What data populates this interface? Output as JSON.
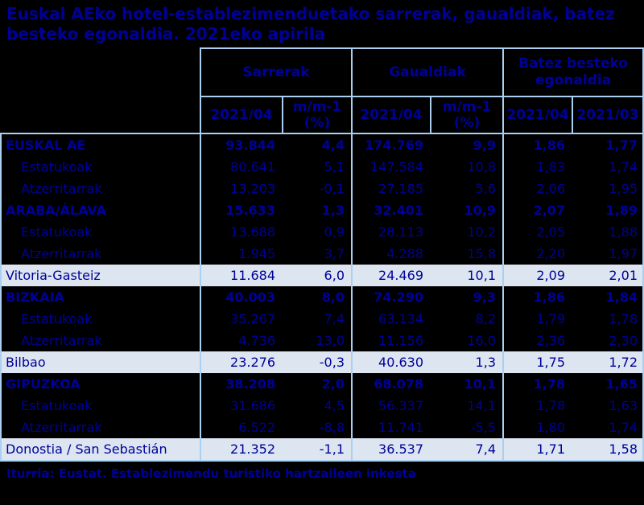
{
  "colors": {
    "background": "#000000",
    "text_navy": "#000099",
    "grid_border_blue": "#ABCFF0",
    "city_row_background": "#DCE5F0"
  },
  "chart_data": {
    "type": "table",
    "title": "Euskal AEko hotel-establezimenduetako sarrerak, gaualdiak, batez besteko egonaldia. 2021eko apirila",
    "title_lines": [
      "Euskal AEko hotel-establezimenduetako sarrerak, gaualdiak, batez",
      "besteko egonaldia. 2021eko apirila"
    ],
    "source": "Iturria: Eustat. Establezimendu turistiko hartzaileen inkesta",
    "column_groups": [
      {
        "label": "Sarrerak",
        "subcolumns": [
          "2021/04",
          "m/m-1 (%)"
        ]
      },
      {
        "label": "Gaualdiak",
        "subcolumns": [
          "2021/04",
          "m/m-1 (%)"
        ]
      },
      {
        "label": "Batez besteko egonaldia",
        "subcolumns": [
          "2021/04",
          "2021/03"
        ]
      }
    ],
    "rows": [
      {
        "label": "EUSKAL AE",
        "style": "bold",
        "values": [
          "93.844",
          "4,4",
          "174.769",
          "9,9",
          "1,86",
          "1,77"
        ]
      },
      {
        "label": "Estatukoak",
        "style": "indent",
        "values": [
          "80.641",
          "5,1",
          "147.584",
          "10,8",
          "1,83",
          "1,74"
        ]
      },
      {
        "label": "Atzerritarrak",
        "style": "indent",
        "values": [
          "13.203",
          "-0,1",
          "27.185",
          "5,6",
          "2,06",
          "1,95"
        ]
      },
      {
        "label": "ARABA/ÁLAVA",
        "style": "bold",
        "values": [
          "15.633",
          "1,3",
          "32.401",
          "10,9",
          "2,07",
          "1,89"
        ]
      },
      {
        "label": "Estatukoak",
        "style": "indent",
        "values": [
          "13.688",
          "0,9",
          "28.113",
          "10,2",
          "2,05",
          "1,88"
        ]
      },
      {
        "label": "Atzerritarrak",
        "style": "indent",
        "values": [
          "1.945",
          "3,7",
          "4.288",
          "15,8",
          "2,20",
          "1,97"
        ]
      },
      {
        "label": "Vitoria-Gasteiz",
        "style": "city",
        "values": [
          "11.684",
          "6,0",
          "24.469",
          "10,1",
          "2,09",
          "2,01"
        ]
      },
      {
        "label": "BIZKAIA",
        "style": "bold",
        "values": [
          "40.003",
          "8,0",
          "74.290",
          "9,3",
          "1,86",
          "1,84"
        ]
      },
      {
        "label": "Estatukoak",
        "style": "indent",
        "values": [
          "35.267",
          "7,4",
          "63.134",
          "8,2",
          "1,79",
          "1,78"
        ]
      },
      {
        "label": "Atzerritarrak",
        "style": "indent",
        "values": [
          "4.736",
          "13,0",
          "11.156",
          "16,0",
          "2,36",
          "2,30"
        ]
      },
      {
        "label": "Bilbao",
        "style": "city",
        "values": [
          "23.276",
          "-0,3",
          "40.630",
          "1,3",
          "1,75",
          "1,72"
        ]
      },
      {
        "label": "GIPUZKOA",
        "style": "bold",
        "values": [
          "38.208",
          "2,0",
          "68.078",
          "10,1",
          "1,78",
          "1,65"
        ]
      },
      {
        "label": "Estatukoak",
        "style": "indent",
        "values": [
          "31.686",
          "4,5",
          "56.337",
          "14,1",
          "1,78",
          "1,63"
        ]
      },
      {
        "label": "Atzerritarrak",
        "style": "indent",
        "values": [
          "6.522",
          "-8,8",
          "11.741",
          "-5,5",
          "1,80",
          "1,74"
        ]
      },
      {
        "label": "Donostia / San Sebastián",
        "style": "city",
        "values": [
          "21.352",
          "-1,1",
          "36.537",
          "7,4",
          "1,71",
          "1,58"
        ]
      }
    ]
  }
}
